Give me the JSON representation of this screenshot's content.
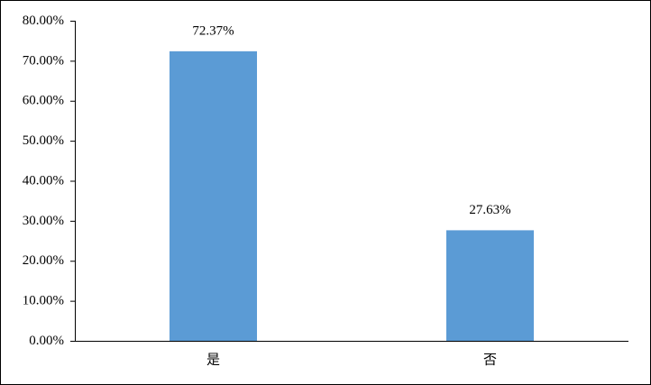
{
  "chart_data": {
    "type": "bar",
    "categories": [
      "是",
      "否"
    ],
    "values": [
      72.37,
      27.63
    ],
    "value_labels": [
      "72.37%",
      "27.63%"
    ],
    "color": "#5b9bd5",
    "ylim": [
      0,
      80
    ],
    "yticks": [
      {
        "value": 0,
        "label": "0.00%"
      },
      {
        "value": 10,
        "label": "10.00%"
      },
      {
        "value": 20,
        "label": "20.00%"
      },
      {
        "value": 30,
        "label": "30.00%"
      },
      {
        "value": 40,
        "label": "40.00%"
      },
      {
        "value": 50,
        "label": "50.00%"
      },
      {
        "value": 60,
        "label": "60.00%"
      },
      {
        "value": 70,
        "label": "70.00%"
      },
      {
        "value": 80,
        "label": "80.00%"
      }
    ],
    "grid": false
  }
}
